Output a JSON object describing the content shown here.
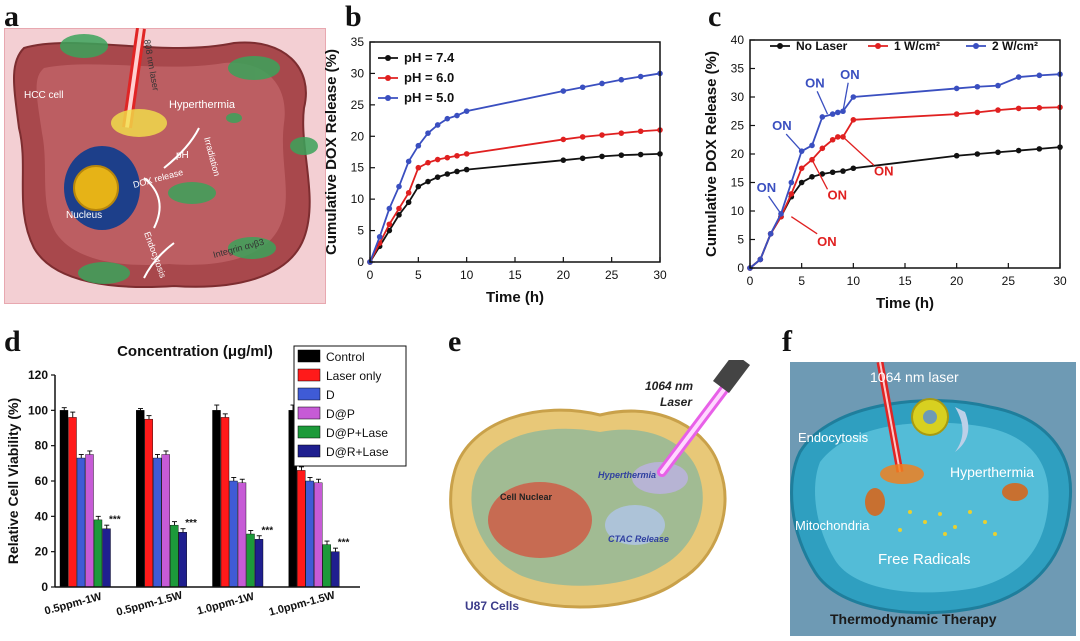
{
  "panels": {
    "a": {
      "letter": "a",
      "labels": {
        "hcc": "HCC cell",
        "laser": "808 nm laser",
        "hyper": "Hyperthermia",
        "irr": "Irradiation",
        "ph": "pH",
        "dox": "DOX release",
        "nucleus": "Nucleus",
        "endo": "Endocytosis",
        "integrin": "Integrin ανβ3"
      }
    },
    "e": {
      "letter": "e",
      "laser": "1064 nm\nLaser",
      "labels": {
        "nuc": "Cell Nuclear",
        "hyper": "Hyperthermia",
        "ctac": "CTAC Release",
        "cells": "U87 Cells"
      }
    },
    "f": {
      "letter": "f",
      "labels": {
        "laser": "1064 nm laser",
        "endo": "Endocytosis",
        "hyper": "Hyperthermia",
        "mito": "Mitochondria",
        "rad": "Free Radicals",
        "ttt": "Thermodynamic Therapy"
      }
    }
  },
  "chart_data": [
    {
      "id": "b",
      "letter": "b",
      "type": "line",
      "xlabel": "Time (h)",
      "ylabel": "Cumulative DOX Release (%)",
      "xlim": [
        0,
        30
      ],
      "ylim": [
        0,
        35
      ],
      "xticks": [
        0,
        5,
        10,
        15,
        20,
        25,
        30
      ],
      "yticks": [
        0,
        5,
        10,
        15,
        20,
        25,
        30,
        35
      ],
      "legend_position": "top-left",
      "colors": [
        "#111111",
        "#e02020",
        "#3a4fc0"
      ],
      "series": [
        {
          "name": "pH = 7.4",
          "x": [
            0,
            1,
            2,
            3,
            4,
            5,
            6,
            7,
            8,
            9,
            10,
            20,
            22,
            24,
            26,
            28,
            30
          ],
          "y": [
            0,
            2.5,
            5,
            7.5,
            9.5,
            12,
            12.8,
            13.5,
            14,
            14.4,
            14.7,
            16.2,
            16.5,
            16.8,
            17,
            17.1,
            17.2
          ]
        },
        {
          "name": "pH = 6.0",
          "x": [
            0,
            1,
            2,
            3,
            4,
            5,
            6,
            7,
            8,
            9,
            10,
            20,
            22,
            24,
            26,
            28,
            30
          ],
          "y": [
            0,
            3,
            6,
            8.5,
            11,
            15,
            15.8,
            16.3,
            16.6,
            16.9,
            17.2,
            19.5,
            19.9,
            20.2,
            20.5,
            20.8,
            21
          ]
        },
        {
          "name": "pH = 5.0",
          "x": [
            0,
            1,
            2,
            3,
            4,
            5,
            6,
            7,
            8,
            9,
            10,
            20,
            22,
            24,
            26,
            28,
            30
          ],
          "y": [
            0,
            4,
            8.5,
            12,
            16,
            18.5,
            20.5,
            21.8,
            22.8,
            23.3,
            24,
            27.2,
            27.8,
            28.4,
            29,
            29.5,
            30
          ]
        }
      ]
    },
    {
      "id": "c",
      "letter": "c",
      "type": "line",
      "xlabel": "Time (h)",
      "ylabel": "Cumulative DOX Release (%)",
      "xlim": [
        0,
        30
      ],
      "ylim": [
        0,
        40
      ],
      "xticks": [
        0,
        5,
        10,
        15,
        20,
        25,
        30
      ],
      "yticks": [
        0,
        5,
        10,
        15,
        20,
        25,
        30,
        35,
        40
      ],
      "legend_position": "top",
      "colors": [
        "#111111",
        "#e02020",
        "#3a4fc0"
      ],
      "series": [
        {
          "name": "No Laser",
          "x": [
            0,
            1,
            2,
            3,
            4,
            5,
            6,
            7,
            8,
            9,
            10,
            20,
            22,
            24,
            26,
            28,
            30
          ],
          "y": [
            0,
            1.5,
            6,
            9,
            12.5,
            15,
            16,
            16.5,
            16.8,
            17,
            17.5,
            19.7,
            20,
            20.3,
            20.6,
            20.9,
            21.2
          ]
        },
        {
          "name": "1 W/cm²",
          "x": [
            0,
            1,
            2,
            3,
            4,
            5,
            6,
            7,
            8,
            8.5,
            9,
            10,
            20,
            22,
            24,
            26,
            28,
            30
          ],
          "y": [
            0,
            1.5,
            6,
            9,
            13,
            17.5,
            19,
            21,
            22.5,
            23,
            23,
            26,
            27,
            27.3,
            27.7,
            28,
            28.1,
            28.2
          ]
        },
        {
          "name": "2 W/cm²",
          "x": [
            0,
            1,
            2,
            3,
            4,
            5,
            6,
            7,
            8,
            8.5,
            9,
            10,
            20,
            22,
            24,
            26,
            28,
            30
          ],
          "y": [
            0,
            1.5,
            6,
            9.5,
            15,
            20.5,
            21.5,
            26.5,
            27,
            27.3,
            27.5,
            30,
            31.5,
            31.8,
            32,
            33.5,
            33.8,
            34
          ]
        }
      ],
      "annotations": [
        "ON",
        "ON",
        "ON",
        "ON",
        "ON",
        "ON",
        "ON"
      ]
    },
    {
      "id": "d",
      "letter": "d",
      "type": "bar",
      "title": "Concentration (μg/ml)",
      "ylabel": "Relative Cell Viability (%)",
      "ylim": [
        0,
        120
      ],
      "yticks": [
        0,
        20,
        40,
        60,
        80,
        100,
        120
      ],
      "categories": [
        "0.5ppm-1W",
        "0.5ppm-1.5W",
        "1.0ppm-1W",
        "1.0ppm-1.5W"
      ],
      "legend_position": "top-right",
      "significance": "***",
      "colors": [
        "#000000",
        "#ff1a1a",
        "#3f5bd6",
        "#c65bd6",
        "#1c9a3a",
        "#1f1f8f"
      ],
      "series": [
        {
          "name": "Control",
          "values": [
            100,
            100,
            100,
            100
          ],
          "errors": [
            1.5,
            1,
            3,
            3
          ]
        },
        {
          "name": "Laser only",
          "values": [
            96,
            95,
            96,
            66
          ],
          "errors": [
            3,
            2,
            2,
            2
          ]
        },
        {
          "name": "D",
          "values": [
            73,
            73,
            60,
            60
          ],
          "errors": [
            2,
            2,
            2,
            2
          ]
        },
        {
          "name": "D@P",
          "values": [
            75,
            75,
            59,
            59
          ],
          "errors": [
            2,
            2,
            2,
            2
          ]
        },
        {
          "name": "D@P+Lase",
          "values": [
            38,
            35,
            30,
            24
          ],
          "errors": [
            2,
            2,
            2,
            2
          ]
        },
        {
          "name": "D@R+Lase",
          "values": [
            33,
            31,
            27,
            20
          ],
          "errors": [
            2,
            2,
            2,
            2
          ]
        }
      ]
    }
  ]
}
